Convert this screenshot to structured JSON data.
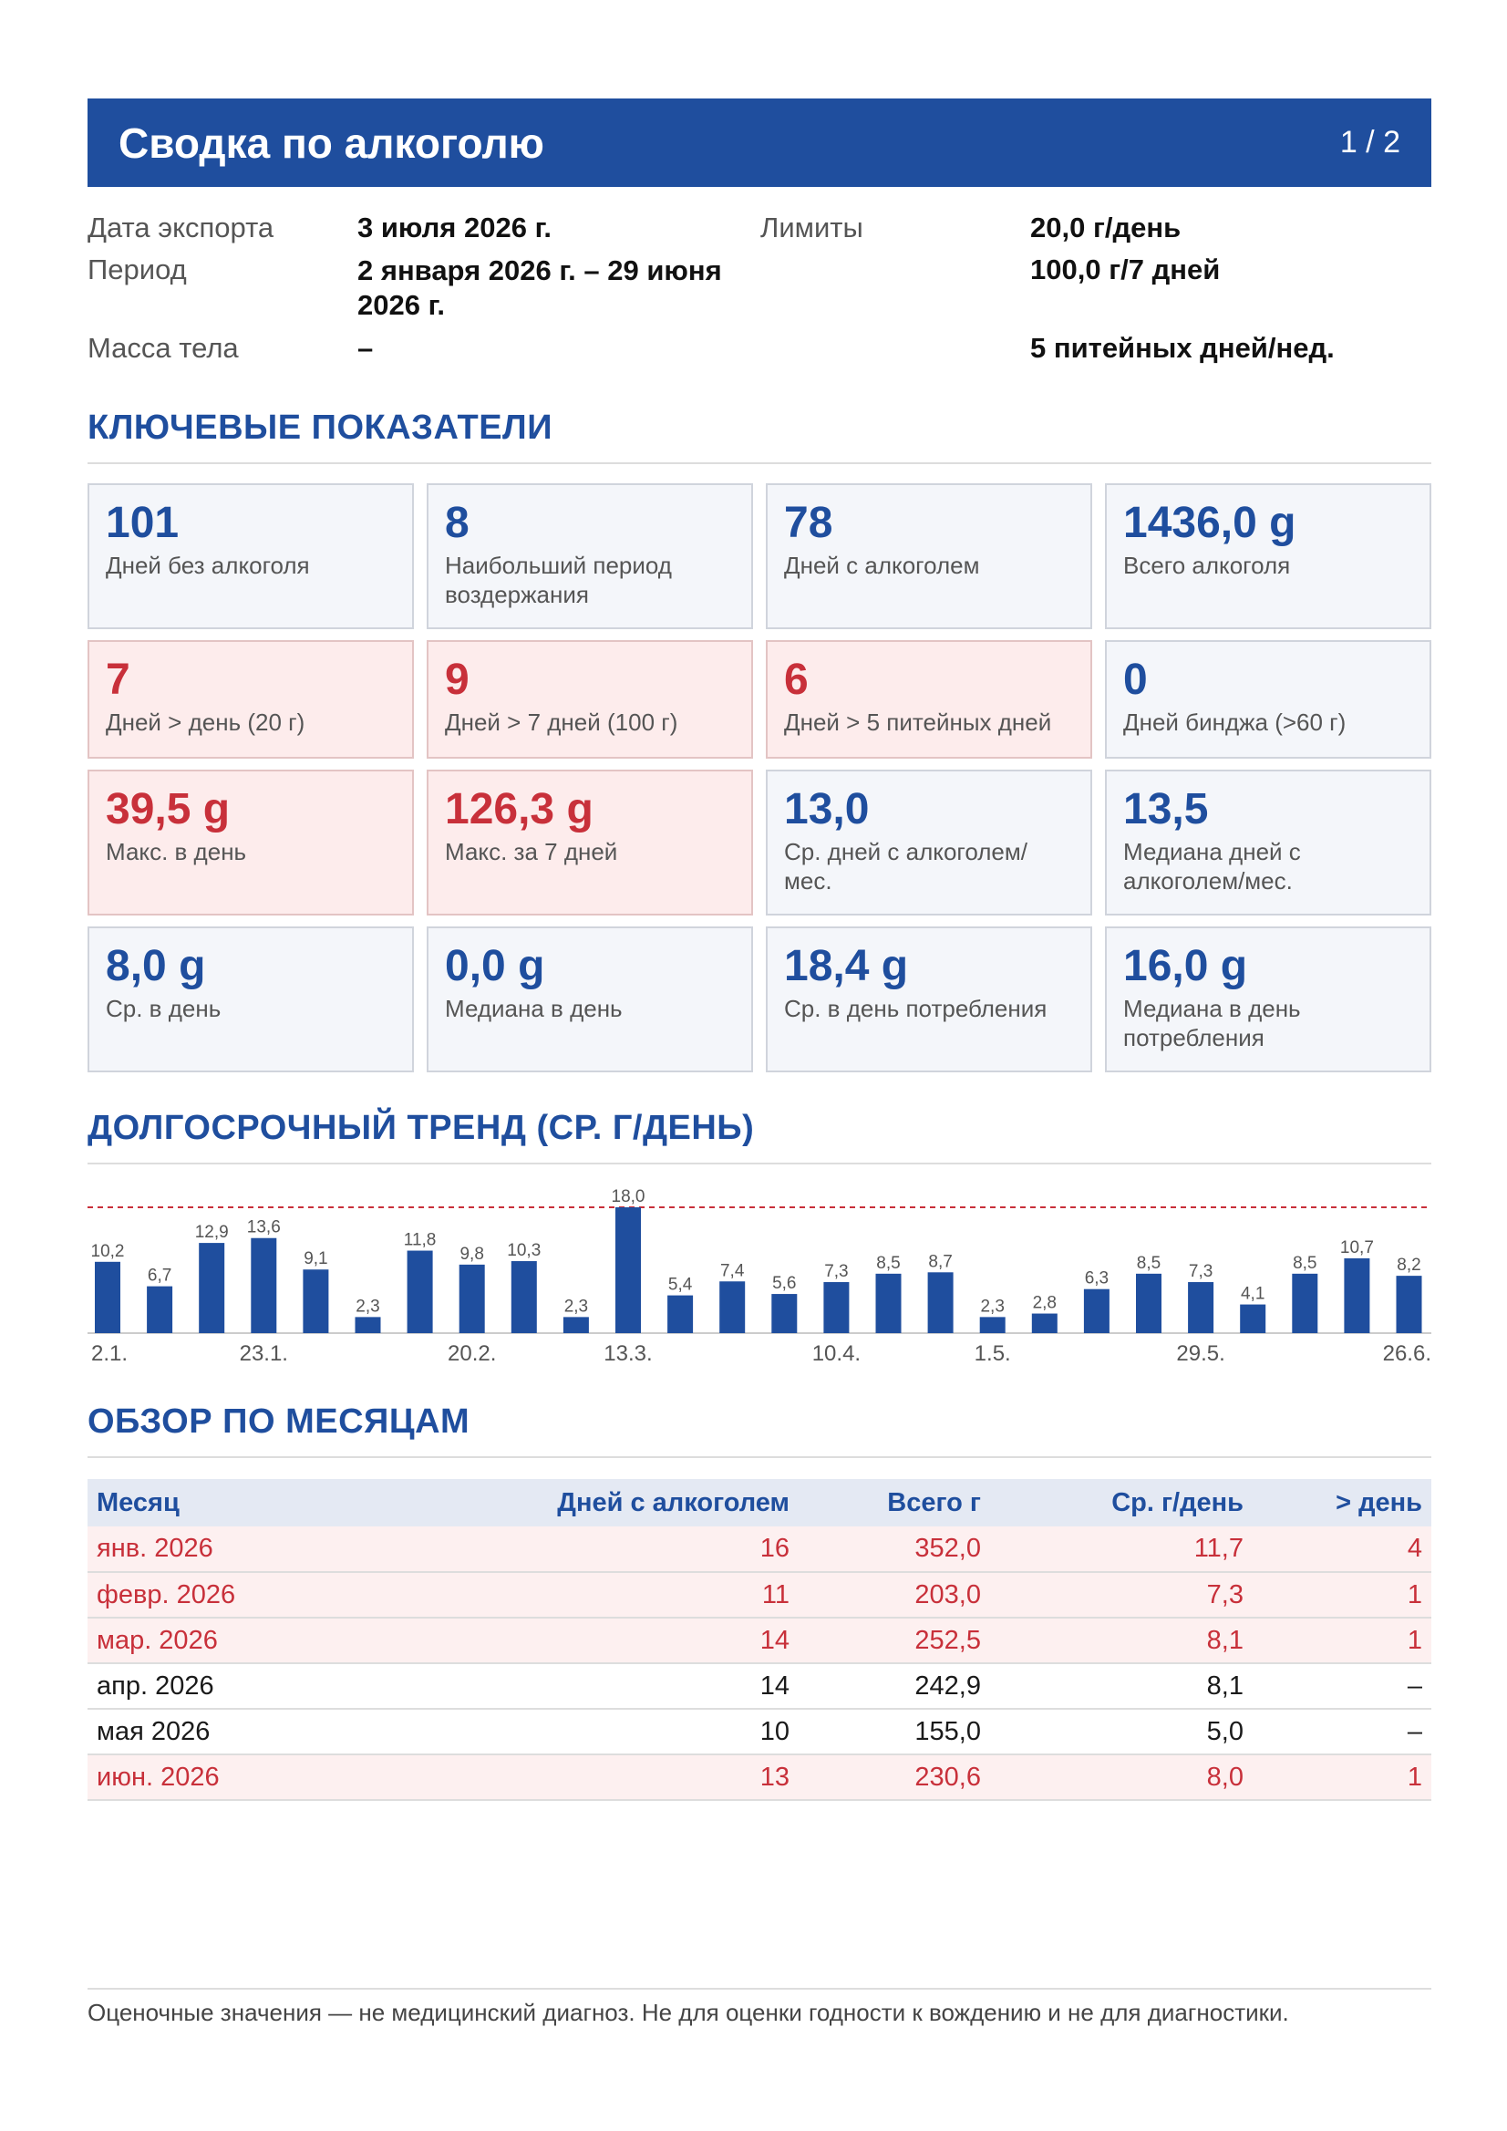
{
  "header": {
    "title": "Сводка по алкоголю",
    "page": "1 / 2"
  },
  "meta": {
    "export_label": "Дата экспорта",
    "export_value": "3 июля 2026 г.",
    "period_label": "Период",
    "period_value": "2 января 2026 г. – 29 июня 2026 г.",
    "weight_label": "Масса тела",
    "weight_value": "–",
    "limits_label": "Лимиты",
    "limit_day": "20,0 г/день",
    "limit_week": "100,0 г/7 дней",
    "limit_drinking_days": "5 питейных дней/нед."
  },
  "sections": {
    "kpi": "КЛЮЧЕВЫЕ ПОКАЗАТЕЛИ",
    "trend": "ДОЛГОСРОЧНЫЙ ТРЕНД (СР. Г/ДЕНЬ)",
    "months": "ОБЗОР ПО МЕСЯЦАМ"
  },
  "kpis": [
    {
      "value": "101",
      "label": "Дней без алкоголя",
      "warn": false
    },
    {
      "value": "8",
      "label": "Наибольший период воздержания",
      "warn": false
    },
    {
      "value": "78",
      "label": "Дней с алкоголем",
      "warn": false
    },
    {
      "value": "1436,0 g",
      "label": "Всего алкоголя",
      "warn": false
    },
    {
      "value": "7",
      "label": "Дней > день (20 г)",
      "warn": true
    },
    {
      "value": "9",
      "label": "Дней > 7 дней (100 г)",
      "warn": true
    },
    {
      "value": "6",
      "label": "Дней > 5 питейных дней",
      "warn": true
    },
    {
      "value": "0",
      "label": "Дней бинджа (>60 г)",
      "warn": false
    },
    {
      "value": "39,5 g",
      "label": "Макс. в день",
      "warn": true
    },
    {
      "value": "126,3 g",
      "label": "Макс. за 7 дней",
      "warn": true
    },
    {
      "value": "13,0",
      "label": "Ср. дней с алкоголем/мес.",
      "warn": false
    },
    {
      "value": "13,5",
      "label": "Медиана дней с алкоголем/мес.",
      "warn": false
    },
    {
      "value": "8,0 g",
      "label": "Ср. в день",
      "warn": false
    },
    {
      "value": "0,0 g",
      "label": "Медиана в день",
      "warn": false
    },
    {
      "value": "18,4 g",
      "label": "Ср. в день потребления",
      "warn": false
    },
    {
      "value": "16,0 g",
      "label": "Медиана в день потребления",
      "warn": false
    }
  ],
  "chart_data": {
    "type": "bar",
    "bar_color": "#1f4e9e",
    "reference_line_color": "#c8303a",
    "reference_line_value": 18.0,
    "values": [
      10.2,
      6.7,
      12.9,
      13.6,
      9.1,
      2.3,
      11.8,
      9.8,
      10.3,
      2.3,
      18.0,
      5.4,
      7.4,
      5.6,
      7.3,
      8.5,
      8.7,
      2.3,
      2.8,
      6.3,
      8.5,
      7.3,
      4.1,
      8.5,
      10.7,
      8.2
    ],
    "value_labels": [
      "10,2",
      "6,7",
      "12,9",
      "13,6",
      "9,1",
      "2,3",
      "11,8",
      "9,8",
      "10,3",
      "2,3",
      "18,0",
      "5,4",
      "7,4",
      "5,6",
      "7,3",
      "8,5",
      "8,7",
      "2,3",
      "2,8",
      "6,3",
      "8,5",
      "7,3",
      "4,1",
      "8,5",
      "10,7",
      "8,2"
    ],
    "x_ticks": [
      {
        "index": 0,
        "label": "2.1."
      },
      {
        "index": 3,
        "label": "23.1."
      },
      {
        "index": 7,
        "label": "20.2."
      },
      {
        "index": 10,
        "label": "13.3."
      },
      {
        "index": 14,
        "label": "10.4."
      },
      {
        "index": 17,
        "label": "1.5."
      },
      {
        "index": 21,
        "label": "29.5."
      },
      {
        "index": 25,
        "label": "26.6."
      }
    ]
  },
  "month_table": {
    "headers": [
      "Месяц",
      "Дней с алкоголем",
      "Всего г",
      "Ср. г/день",
      "> день"
    ],
    "rows": [
      {
        "month": "янв. 2026",
        "days": "16",
        "total": "352,0",
        "avg": "11,7",
        "over": "4",
        "warn": true
      },
      {
        "month": "февр. 2026",
        "days": "11",
        "total": "203,0",
        "avg": "7,3",
        "over": "1",
        "warn": true
      },
      {
        "month": "мар. 2026",
        "days": "14",
        "total": "252,5",
        "avg": "8,1",
        "over": "1",
        "warn": true
      },
      {
        "month": "апр. 2026",
        "days": "14",
        "total": "242,9",
        "avg": "8,1",
        "over": "–",
        "warn": false
      },
      {
        "month": "мая 2026",
        "days": "10",
        "total": "155,0",
        "avg": "5,0",
        "over": "–",
        "warn": false
      },
      {
        "month": "июн. 2026",
        "days": "13",
        "total": "230,6",
        "avg": "8,0",
        "over": "1",
        "warn": true
      }
    ]
  },
  "footer": {
    "text": "Оценочные значения — не медицинский диагноз. Не для оценки годности к вождению и не для диагностики."
  }
}
